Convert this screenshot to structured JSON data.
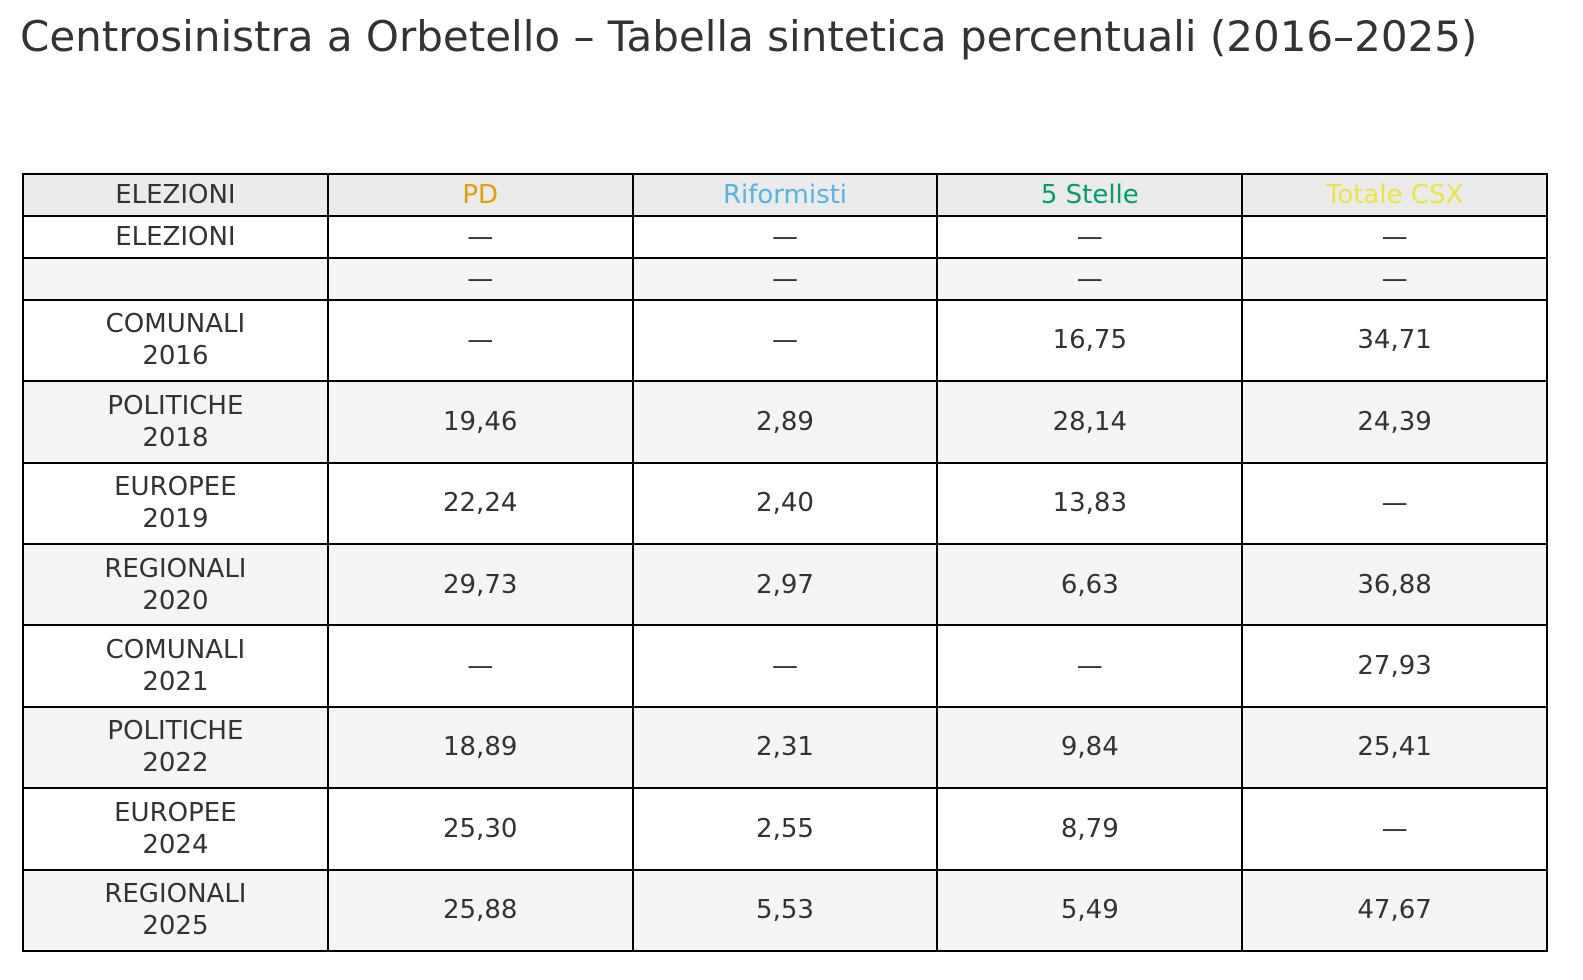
{
  "title": "Centrosinistra a Orbetello – Tabella sintetica percentuali (2016–2025)",
  "table": {
    "header": [
      "ELEZIONI",
      "PD",
      "Riformisti",
      "5 Stelle",
      "Totale CSX"
    ],
    "header_colors": [
      "#333333",
      "#e69f00",
      "#56b4e9",
      "#009e73",
      "#f0e442"
    ],
    "rows": [
      [
        "ELEZIONI",
        "—",
        "—",
        "—",
        "—"
      ],
      [
        null,
        "—",
        "—",
        "—",
        "—"
      ],
      [
        "COMUNALI\n2016",
        "—",
        "—",
        "16,75",
        "34,71"
      ],
      [
        "POLITICHE\n2018",
        "19,46",
        "2,89",
        "28,14",
        "24,39"
      ],
      [
        "EUROPEE\n2019",
        "22,24",
        "2,40",
        "13,83",
        "—"
      ],
      [
        "REGIONALI\n2020",
        "29,73",
        "2,97",
        "6,63",
        "36,88"
      ],
      [
        "COMUNALI\n2021",
        "—",
        "—",
        "—",
        "27,93"
      ],
      [
        "POLITICHE\n2022",
        "18,89",
        "2,31",
        "9,84",
        "25,41"
      ],
      [
        "EUROPEE\n2024",
        "25,30",
        "2,55",
        "8,79",
        "—"
      ],
      [
        "REGIONALI\n2025",
        "25,88",
        "5,53",
        "5,49",
        "47,67"
      ]
    ]
  }
}
